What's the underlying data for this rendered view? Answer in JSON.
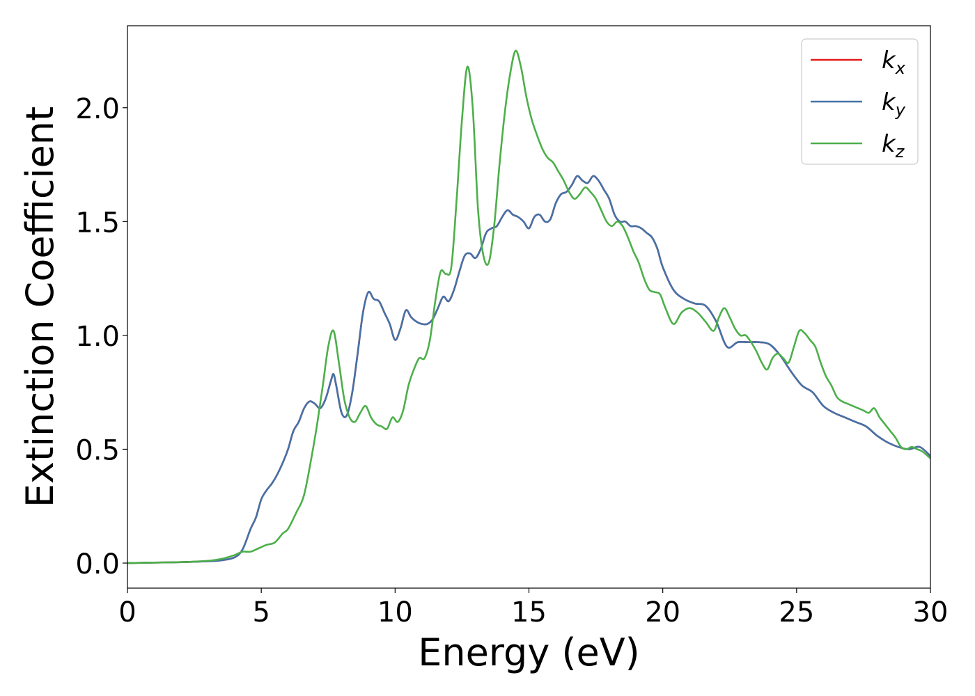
{
  "chart_data": {
    "type": "line",
    "title": "",
    "xlabel": "Energy (eV)",
    "ylabel": "Extinction Coefficient",
    "xlim": [
      0,
      30
    ],
    "ylim": [
      -0.11,
      2.36
    ],
    "xticks": [
      0,
      5,
      10,
      15,
      20,
      25,
      30
    ],
    "xtick_labels": [
      "0",
      "5",
      "10",
      "15",
      "20",
      "25",
      "30"
    ],
    "yticks": [
      0.0,
      0.5,
      1.0,
      1.5,
      2.0
    ],
    "ytick_labels": [
      "0.0",
      "0.5",
      "1.0",
      "1.5",
      "2.0"
    ],
    "grid": false,
    "legend_position": "top-right",
    "series": [
      {
        "name": "k_x",
        "label_main": "k",
        "label_sub": "x",
        "color": "#e41a1c",
        "x": [
          0,
          1,
          2,
          3,
          3.5,
          4,
          4.3,
          4.6,
          4.8,
          5.0,
          5.2,
          5.4,
          5.6,
          5.8,
          6.0,
          6.2,
          6.4,
          6.6,
          6.8,
          7.0,
          7.2,
          7.4,
          7.6,
          7.7,
          7.8,
          8.0,
          8.2,
          8.4,
          8.6,
          8.8,
          9.0,
          9.2,
          9.4,
          9.6,
          9.8,
          10.0,
          10.2,
          10.4,
          10.6,
          10.8,
          11.0,
          11.2,
          11.4,
          11.6,
          11.8,
          12.0,
          12.2,
          12.4,
          12.6,
          12.8,
          13.0,
          13.2,
          13.4,
          13.6,
          13.8,
          14.0,
          14.2,
          14.4,
          14.6,
          14.8,
          15.0,
          15.2,
          15.4,
          15.6,
          15.8,
          16.0,
          16.2,
          16.4,
          16.6,
          16.8,
          17.0,
          17.2,
          17.4,
          17.6,
          17.8,
          18.0,
          18.2,
          18.4,
          18.6,
          18.8,
          19.0,
          19.2,
          19.4,
          19.6,
          19.8,
          20.0,
          20.4,
          20.8,
          21.2,
          21.6,
          22.0,
          22.4,
          22.8,
          23.2,
          23.6,
          24.0,
          24.4,
          24.8,
          25.2,
          25.6,
          26.0,
          26.4,
          26.8,
          27.2,
          27.6,
          28.0,
          28.4,
          28.8,
          29.2,
          29.6,
          30.0
        ],
        "y": [
          0.0,
          0.002,
          0.004,
          0.008,
          0.012,
          0.025,
          0.06,
          0.15,
          0.2,
          0.28,
          0.32,
          0.35,
          0.39,
          0.44,
          0.5,
          0.58,
          0.62,
          0.68,
          0.71,
          0.7,
          0.68,
          0.72,
          0.8,
          0.83,
          0.78,
          0.66,
          0.65,
          0.75,
          0.92,
          1.1,
          1.19,
          1.16,
          1.15,
          1.1,
          1.05,
          0.98,
          1.03,
          1.11,
          1.08,
          1.06,
          1.05,
          1.05,
          1.07,
          1.12,
          1.17,
          1.15,
          1.2,
          1.28,
          1.35,
          1.36,
          1.34,
          1.38,
          1.45,
          1.47,
          1.48,
          1.52,
          1.55,
          1.53,
          1.52,
          1.5,
          1.47,
          1.52,
          1.53,
          1.5,
          1.51,
          1.58,
          1.62,
          1.63,
          1.66,
          1.7,
          1.68,
          1.67,
          1.7,
          1.68,
          1.64,
          1.6,
          1.53,
          1.5,
          1.5,
          1.48,
          1.48,
          1.47,
          1.45,
          1.43,
          1.38,
          1.3,
          1.2,
          1.16,
          1.14,
          1.13,
          1.06,
          0.95,
          0.97,
          0.97,
          0.97,
          0.96,
          0.91,
          0.84,
          0.78,
          0.75,
          0.69,
          0.66,
          0.64,
          0.62,
          0.6,
          0.56,
          0.53,
          0.51,
          0.5,
          0.51,
          0.47
        ]
      },
      {
        "name": "k_y",
        "label_main": "k",
        "label_sub": "y",
        "color": "#4472a8",
        "x": [
          0,
          1,
          2,
          3,
          3.5,
          4,
          4.3,
          4.6,
          4.8,
          5.0,
          5.2,
          5.4,
          5.6,
          5.8,
          6.0,
          6.2,
          6.4,
          6.6,
          6.8,
          7.0,
          7.2,
          7.4,
          7.6,
          7.7,
          7.8,
          8.0,
          8.2,
          8.4,
          8.6,
          8.8,
          9.0,
          9.2,
          9.4,
          9.6,
          9.8,
          10.0,
          10.2,
          10.4,
          10.6,
          10.8,
          11.0,
          11.2,
          11.4,
          11.6,
          11.8,
          12.0,
          12.2,
          12.4,
          12.6,
          12.8,
          13.0,
          13.2,
          13.4,
          13.6,
          13.8,
          14.0,
          14.2,
          14.4,
          14.6,
          14.8,
          15.0,
          15.2,
          15.4,
          15.6,
          15.8,
          16.0,
          16.2,
          16.4,
          16.6,
          16.8,
          17.0,
          17.2,
          17.4,
          17.6,
          17.8,
          18.0,
          18.2,
          18.4,
          18.6,
          18.8,
          19.0,
          19.2,
          19.4,
          19.6,
          19.8,
          20.0,
          20.4,
          20.8,
          21.2,
          21.6,
          22.0,
          22.4,
          22.8,
          23.2,
          23.6,
          24.0,
          24.4,
          24.8,
          25.2,
          25.6,
          26.0,
          26.4,
          26.8,
          27.2,
          27.6,
          28.0,
          28.4,
          28.8,
          29.2,
          29.6,
          30.0
        ],
        "y": [
          0.0,
          0.002,
          0.004,
          0.008,
          0.012,
          0.025,
          0.06,
          0.15,
          0.2,
          0.28,
          0.32,
          0.35,
          0.39,
          0.44,
          0.5,
          0.58,
          0.62,
          0.68,
          0.71,
          0.7,
          0.68,
          0.72,
          0.8,
          0.83,
          0.78,
          0.66,
          0.65,
          0.75,
          0.92,
          1.1,
          1.19,
          1.16,
          1.15,
          1.1,
          1.05,
          0.98,
          1.03,
          1.11,
          1.08,
          1.06,
          1.05,
          1.05,
          1.07,
          1.12,
          1.17,
          1.15,
          1.2,
          1.28,
          1.35,
          1.36,
          1.34,
          1.38,
          1.45,
          1.47,
          1.48,
          1.52,
          1.55,
          1.53,
          1.52,
          1.5,
          1.47,
          1.52,
          1.53,
          1.5,
          1.51,
          1.58,
          1.62,
          1.63,
          1.66,
          1.7,
          1.68,
          1.67,
          1.7,
          1.68,
          1.64,
          1.6,
          1.53,
          1.5,
          1.5,
          1.48,
          1.48,
          1.47,
          1.45,
          1.43,
          1.38,
          1.3,
          1.2,
          1.16,
          1.14,
          1.13,
          1.06,
          0.95,
          0.97,
          0.97,
          0.97,
          0.96,
          0.91,
          0.84,
          0.78,
          0.75,
          0.69,
          0.66,
          0.64,
          0.62,
          0.6,
          0.56,
          0.53,
          0.51,
          0.5,
          0.51,
          0.47
        ]
      },
      {
        "name": "k_z",
        "label_main": "k",
        "label_sub": "z",
        "color": "#4daf4a",
        "x": [
          0,
          1,
          2,
          3,
          3.5,
          4.0,
          4.3,
          4.6,
          4.9,
          5.2,
          5.5,
          5.8,
          6.0,
          6.3,
          6.6,
          6.9,
          7.1,
          7.3,
          7.5,
          7.7,
          7.9,
          8.1,
          8.3,
          8.5,
          8.7,
          8.9,
          9.1,
          9.3,
          9.5,
          9.7,
          9.9,
          10.1,
          10.3,
          10.5,
          10.7,
          10.9,
          11.1,
          11.3,
          11.5,
          11.7,
          11.9,
          12.1,
          12.3,
          12.5,
          12.7,
          12.9,
          13.1,
          13.3,
          13.5,
          13.7,
          13.9,
          14.1,
          14.3,
          14.5,
          14.7,
          14.9,
          15.1,
          15.3,
          15.5,
          15.7,
          15.9,
          16.1,
          16.3,
          16.5,
          16.7,
          16.9,
          17.1,
          17.3,
          17.5,
          17.7,
          17.9,
          18.1,
          18.3,
          18.5,
          18.7,
          18.9,
          19.1,
          19.3,
          19.5,
          19.7,
          19.9,
          20.1,
          20.4,
          20.7,
          21.0,
          21.3,
          21.6,
          21.9,
          22.1,
          22.3,
          22.5,
          22.7,
          22.9,
          23.1,
          23.3,
          23.5,
          23.7,
          23.9,
          24.1,
          24.3,
          24.5,
          24.7,
          24.9,
          25.1,
          25.3,
          25.5,
          25.7,
          25.9,
          26.1,
          26.3,
          26.5,
          26.7,
          26.9,
          27.1,
          27.3,
          27.5,
          27.7,
          27.9,
          28.1,
          28.3,
          28.5,
          28.7,
          28.9,
          29.1,
          29.3,
          29.5,
          29.7,
          30.0
        ],
        "y": [
          0.0,
          0.002,
          0.004,
          0.01,
          0.018,
          0.035,
          0.05,
          0.05,
          0.065,
          0.08,
          0.09,
          0.13,
          0.15,
          0.22,
          0.3,
          0.48,
          0.62,
          0.78,
          0.95,
          1.02,
          0.88,
          0.72,
          0.64,
          0.62,
          0.66,
          0.69,
          0.64,
          0.61,
          0.6,
          0.59,
          0.64,
          0.62,
          0.67,
          0.78,
          0.85,
          0.9,
          0.9,
          0.98,
          1.15,
          1.28,
          1.27,
          1.3,
          1.6,
          1.95,
          2.18,
          2.0,
          1.55,
          1.35,
          1.32,
          1.48,
          1.75,
          1.98,
          2.15,
          2.25,
          2.18,
          2.05,
          1.95,
          1.88,
          1.82,
          1.78,
          1.76,
          1.72,
          1.68,
          1.63,
          1.6,
          1.62,
          1.65,
          1.63,
          1.6,
          1.55,
          1.5,
          1.48,
          1.5,
          1.48,
          1.43,
          1.37,
          1.32,
          1.25,
          1.2,
          1.19,
          1.18,
          1.12,
          1.05,
          1.1,
          1.12,
          1.1,
          1.06,
          1.02,
          1.08,
          1.12,
          1.08,
          1.03,
          1.0,
          1.0,
          0.97,
          0.93,
          0.88,
          0.85,
          0.9,
          0.92,
          0.9,
          0.88,
          0.95,
          1.02,
          1.01,
          0.98,
          0.95,
          0.88,
          0.82,
          0.78,
          0.73,
          0.71,
          0.7,
          0.69,
          0.68,
          0.67,
          0.66,
          0.68,
          0.64,
          0.61,
          0.58,
          0.55,
          0.51,
          0.5,
          0.51,
          0.5,
          0.49,
          0.46
        ]
      }
    ]
  }
}
